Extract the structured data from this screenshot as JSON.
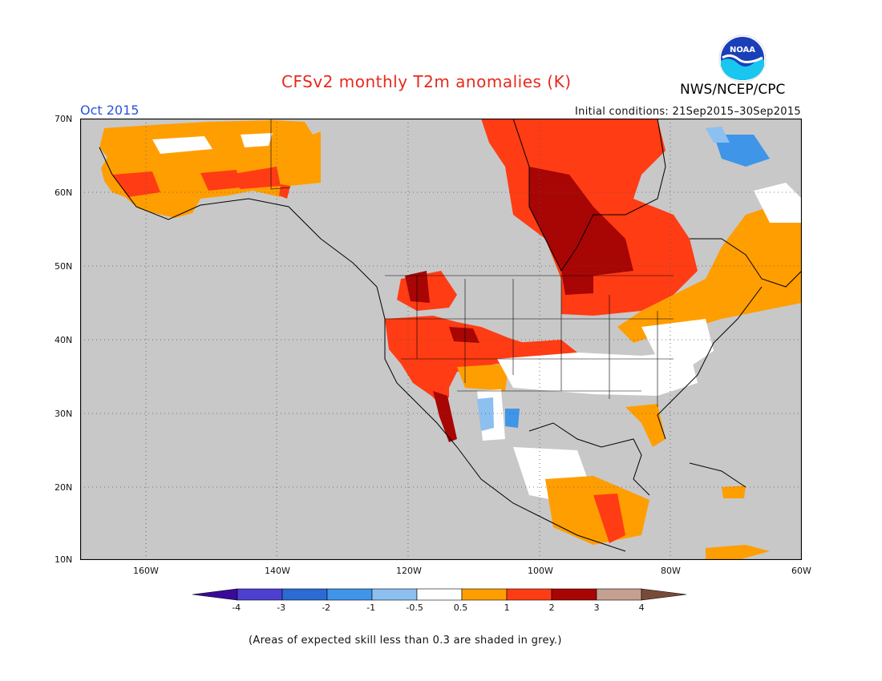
{
  "header": {
    "title": "CFSv2 monthly T2m anomalies (K)",
    "month": "Oct 2015",
    "initial_conditions": "Initial conditions: 21Sep2015–30Sep2015",
    "agency": "NWS/NCEP/CPC",
    "logo_text": "NOAA"
  },
  "axes": {
    "lat_labels": [
      "70N",
      "60N",
      "50N",
      "40N",
      "30N",
      "20N",
      "10N"
    ],
    "lon_labels": [
      "160W",
      "140W",
      "120W",
      "100W",
      "80W",
      "60W"
    ]
  },
  "legend": {
    "tick_labels": [
      "-4",
      "-3",
      "-2",
      "-1",
      "-0.5",
      "0.5",
      "1",
      "2",
      "3",
      "4"
    ],
    "colors": [
      "#3a0a9a",
      "#4d3fcf",
      "#2c6ad4",
      "#3f95e8",
      "#8cc0f0",
      "#ffffff",
      "#ff9e00",
      "#ff3c14",
      "#a80505",
      "#c5a090",
      "#7a4a38"
    ]
  },
  "colors": {
    "grey_skill": "#c8c8c8",
    "title_red": "#e8291c",
    "month_blue": "#2a54d8"
  },
  "footnote": "(Areas of expected skill less than 0.3 are shaded in grey.)"
}
